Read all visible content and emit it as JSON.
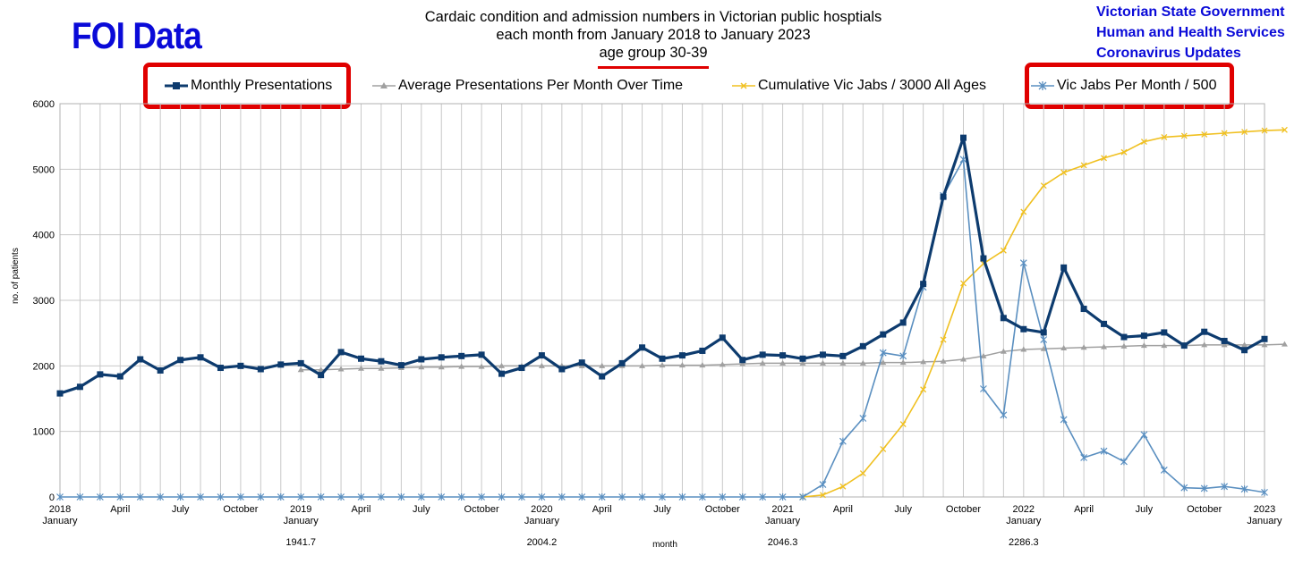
{
  "header": {
    "badge": "FOI Data",
    "title_lines": [
      "Cardaic condition and admission numbers  in Victorian public  hosptials",
      "each month  from  January 2018 to January 2023",
      "age group  30-39"
    ],
    "source_lines": [
      "Victorian State Government",
      "Human and Health Services",
      "Coronavirus Updates"
    ]
  },
  "colors": {
    "monthly": "#0d3b6e",
    "average": "#a0a0a0",
    "cumulative": "#f0c020",
    "jabs": "#5a8fc0",
    "highlight": "#e00000",
    "badge": "#0a0ad8"
  },
  "chart_data": {
    "type": "line",
    "title": "Cardaic condition and admission numbers  in Victorian public  hosptials each month  from  January 2018 to January 2023 age group  30-39",
    "xlabel": "month",
    "ylabel": "no. of patients",
    "ylim": [
      0,
      6000
    ],
    "yticks": [
      0,
      1000,
      2000,
      3000,
      4000,
      5000,
      6000
    ],
    "grid": true,
    "legend_position": "top",
    "x_tick_labels": [
      {
        "index": 0,
        "lines": [
          "2018",
          "January"
        ]
      },
      {
        "index": 3,
        "lines": [
          "April"
        ]
      },
      {
        "index": 6,
        "lines": [
          "July"
        ]
      },
      {
        "index": 9,
        "lines": [
          "October"
        ]
      },
      {
        "index": 12,
        "lines": [
          "2019",
          "January"
        ]
      },
      {
        "index": 15,
        "lines": [
          "April"
        ]
      },
      {
        "index": 18,
        "lines": [
          "July"
        ]
      },
      {
        "index": 21,
        "lines": [
          "October"
        ]
      },
      {
        "index": 24,
        "lines": [
          "2020",
          "January"
        ]
      },
      {
        "index": 27,
        "lines": [
          "April"
        ]
      },
      {
        "index": 30,
        "lines": [
          "July"
        ]
      },
      {
        "index": 33,
        "lines": [
          "October"
        ]
      },
      {
        "index": 36,
        "lines": [
          "2021",
          "January"
        ]
      },
      {
        "index": 39,
        "lines": [
          "April"
        ]
      },
      {
        "index": 42,
        "lines": [
          "July"
        ]
      },
      {
        "index": 45,
        "lines": [
          "October"
        ]
      },
      {
        "index": 48,
        "lines": [
          "2022",
          "January"
        ]
      },
      {
        "index": 51,
        "lines": [
          "April"
        ]
      },
      {
        "index": 54,
        "lines": [
          "July"
        ]
      },
      {
        "index": 57,
        "lines": [
          "October"
        ]
      },
      {
        "index": 60,
        "lines": [
          "2023",
          "January"
        ]
      }
    ],
    "annotations": [
      {
        "index": 12,
        "text": "1941.7"
      },
      {
        "index": 24,
        "text": "2004.2"
      },
      {
        "index": 36,
        "text": "2046.3"
      },
      {
        "index": 48,
        "text": "2286.3"
      }
    ],
    "series": [
      {
        "name": "Monthly Presentations",
        "marker": "square",
        "highlighted": true,
        "start_index": 0,
        "values": [
          1580,
          1680,
          1870,
          1840,
          2100,
          1930,
          2090,
          2130,
          1970,
          2000,
          1950,
          2020,
          2040,
          1860,
          2210,
          2110,
          2070,
          2010,
          2100,
          2130,
          2150,
          2170,
          1880,
          1970,
          2160,
          1950,
          2050,
          1840,
          2040,
          2280,
          2110,
          2160,
          2230,
          2430,
          2090,
          2170,
          2160,
          2110,
          2170,
          2150,
          2300,
          2480,
          2660,
          3250,
          4580,
          5480,
          3640,
          2730,
          2560,
          2510,
          3500,
          2870,
          2640,
          2440,
          2460,
          2510,
          2310,
          2520,
          2380,
          2240,
          2410
        ]
      },
      {
        "name": "Average Presentations Per Month Over Time",
        "marker": "triangle",
        "highlighted": false,
        "start_index": 12,
        "values": [
          1940,
          1940,
          1950,
          1960,
          1960,
          1970,
          1980,
          1980,
          1990,
          1990,
          2000,
          2000,
          2000,
          2000,
          2000,
          2000,
          2000,
          2000,
          2010,
          2010,
          2010,
          2020,
          2030,
          2040,
          2040,
          2040,
          2040,
          2040,
          2040,
          2050,
          2050,
          2060,
          2070,
          2100,
          2150,
          2220,
          2250,
          2260,
          2270,
          2280,
          2290,
          2300,
          2310,
          2310,
          2310,
          2320,
          2320,
          2320,
          2320,
          2330
        ]
      },
      {
        "name": "Cumulative Vic Jabs / 3000 All Ages",
        "marker": "x",
        "highlighted": false,
        "start_index": 37,
        "values": [
          0,
          30,
          160,
          360,
          730,
          1110,
          1640,
          2400,
          3260,
          3560,
          3760,
          4350,
          4750,
          4950,
          5060,
          5170,
          5260,
          5420,
          5490,
          5510,
          5530,
          5550,
          5570,
          5590,
          5600
        ]
      },
      {
        "name": "Vic Jabs Per Month / 500",
        "marker": "star",
        "highlighted": true,
        "start_index": 0,
        "values": [
          0,
          0,
          0,
          0,
          0,
          0,
          0,
          0,
          0,
          0,
          0,
          0,
          0,
          0,
          0,
          0,
          0,
          0,
          0,
          0,
          0,
          0,
          0,
          0,
          0,
          0,
          0,
          0,
          0,
          0,
          0,
          0,
          0,
          0,
          0,
          0,
          0,
          0,
          190,
          850,
          1200,
          2200,
          2150,
          3200,
          4600,
          5150,
          1650,
          1250,
          3570,
          2400,
          1180,
          600,
          700,
          540,
          950,
          410,
          140,
          130,
          160,
          120,
          70
        ]
      }
    ]
  }
}
